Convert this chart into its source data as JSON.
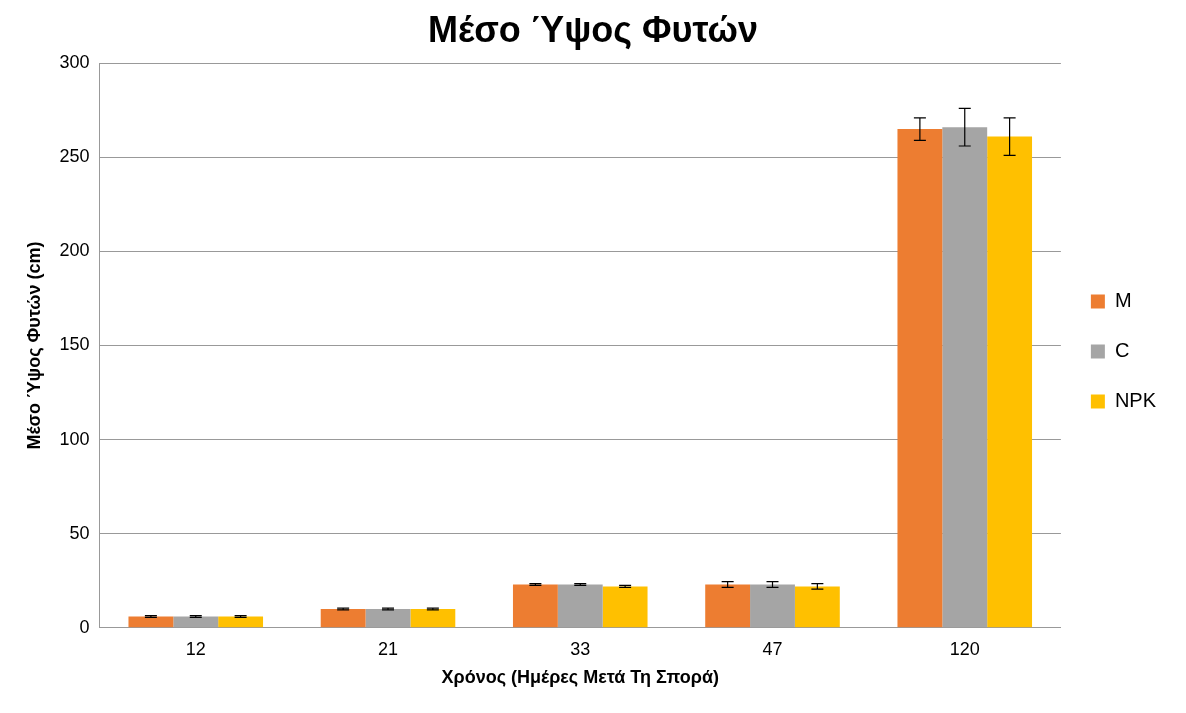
{
  "chart_data": {
    "type": "bar",
    "title": "Μέσο Ύψος Φυτών",
    "xlabel": "Χρόνος (Ημέρες Μετά Τη Σπορά)",
    "ylabel": "Μέσο Ύψος Φυτών (cm)",
    "categories": [
      "12",
      "21",
      "33",
      "47",
      "120"
    ],
    "series": [
      {
        "name": "M",
        "color": "#ed7d31",
        "values": [
          6,
          10,
          23,
          23,
          265
        ],
        "errors": [
          0.5,
          0.5,
          0.5,
          1.5,
          6
        ]
      },
      {
        "name": "C",
        "color": "#a5a5a5",
        "values": [
          6,
          10,
          23,
          23,
          266
        ],
        "errors": [
          0.5,
          0.5,
          0.5,
          1.5,
          10
        ]
      },
      {
        "name": "NPK",
        "color": "#ffc000",
        "values": [
          6,
          10,
          22,
          22,
          261
        ],
        "errors": [
          0.5,
          0.5,
          0.5,
          1.5,
          10
        ]
      }
    ],
    "ylim": [
      0,
      300
    ],
    "yticks": [
      0,
      50,
      100,
      150,
      200,
      250,
      300
    ],
    "grid": "y",
    "legend": "right"
  }
}
